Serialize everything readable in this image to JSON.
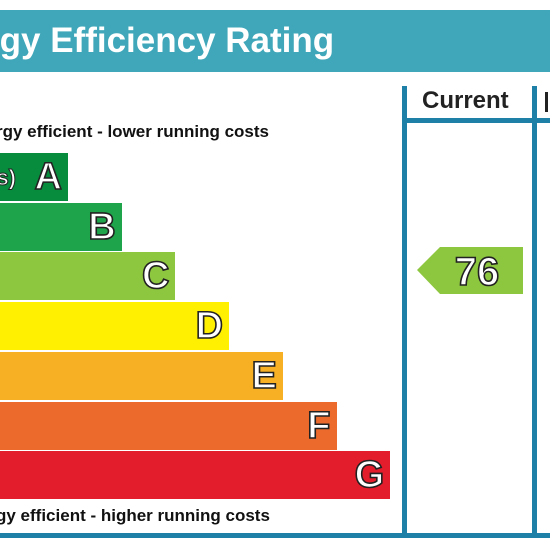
{
  "title": "rgy Efficiency Rating",
  "columns": {
    "current": "Current"
  },
  "captions": {
    "top": "rgy efficient - lower running costs",
    "bottom": "gy efficient - higher running costs"
  },
  "chart_data": {
    "type": "bar",
    "categories": [
      "A",
      "B",
      "C",
      "D",
      "E",
      "F",
      "G"
    ],
    "bands": [
      {
        "letter": "A",
        "range": "s)",
        "color": "#078b3c"
      },
      {
        "letter": "B",
        "range": "",
        "color": "#1ea44b"
      },
      {
        "letter": "C",
        "range": "",
        "color": "#8dc63f"
      },
      {
        "letter": "D",
        "range": "",
        "color": "#ffef00"
      },
      {
        "letter": "E",
        "range": "",
        "color": "#f7b023"
      },
      {
        "letter": "F",
        "range": "",
        "color": "#ec6a2b"
      },
      {
        "letter": "G",
        "range": "",
        "color": "#e31d2b"
      }
    ],
    "current": {
      "value": 76,
      "label": "76",
      "band": "C",
      "color": "#8dc63f"
    }
  }
}
